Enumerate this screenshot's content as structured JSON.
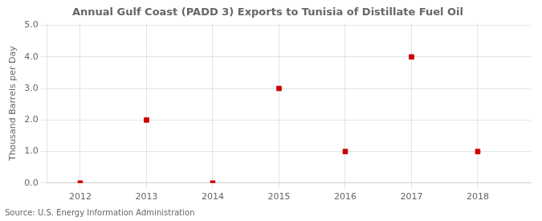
{
  "chart_data": {
    "type": "scatter",
    "title": "Annual Gulf Coast (PADD 3) Exports to Tunisia of Distillate Fuel Oil",
    "ylabel": "Thousand Barrels per Day",
    "annotations": [
      "Source: U.S. Energy Information Administration"
    ],
    "x": [
      2012,
      2013,
      2014,
      2015,
      2016,
      2017,
      2018
    ],
    "values": [
      0.0,
      2.0,
      0.0,
      3.0,
      1.0,
      4.0,
      1.0
    ],
    "color": "#cc0000",
    "marker": "square",
    "xlim": [
      2011.5,
      2018.8
    ],
    "ylim": [
      0.0,
      5.05
    ],
    "xticks": [
      2012,
      2013,
      2014,
      2015,
      2016,
      2017,
      2018
    ],
    "yticks": [
      {
        "value": 0.0,
        "label": "0.0"
      },
      {
        "value": 1.0,
        "label": "1.0"
      },
      {
        "value": 2.0,
        "label": "2.0"
      },
      {
        "value": 3.0,
        "label": "3.0"
      },
      {
        "value": 4.0,
        "label": "4.0"
      },
      {
        "value": 5.0,
        "label": "5.0"
      }
    ],
    "grid": true
  }
}
